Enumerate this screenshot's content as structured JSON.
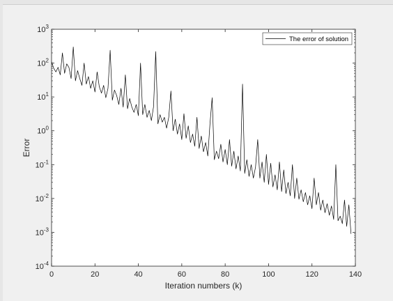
{
  "chart_data": {
    "type": "line",
    "title": "",
    "xlabel": "Iteration numbers (k)",
    "ylabel": "Error",
    "xlim": [
      0,
      140
    ],
    "ylim": [
      0.0001,
      1000
    ],
    "yscale": "log",
    "grid": false,
    "legend_position": "top-right",
    "x_ticks": [
      0,
      20,
      40,
      60,
      80,
      100,
      120,
      140
    ],
    "x_tick_labels": [
      "0",
      "20",
      "40",
      "60",
      "80",
      "100",
      "120",
      "140"
    ],
    "y_ticks": [
      0.0001,
      0.001,
      0.01,
      0.1,
      1,
      10,
      100,
      1000
    ],
    "y_tick_labels": [
      {
        "base": "10",
        "exp": "-4"
      },
      {
        "base": "10",
        "exp": "-3"
      },
      {
        "base": "10",
        "exp": "-2"
      },
      {
        "base": "10",
        "exp": "-1"
      },
      {
        "base": "10",
        "exp": "0"
      },
      {
        "base": "10",
        "exp": "1"
      },
      {
        "base": "10",
        "exp": "2"
      },
      {
        "base": "10",
        "exp": "3"
      }
    ],
    "series": [
      {
        "name": "The error of solution",
        "color": "#000000",
        "x": [
          0,
          1,
          2,
          3,
          4,
          5,
          6,
          7,
          8,
          9,
          10,
          11,
          12,
          13,
          14,
          15,
          16,
          17,
          18,
          19,
          20,
          21,
          22,
          23,
          24,
          25,
          26,
          27,
          28,
          29,
          30,
          31,
          32,
          33,
          34,
          35,
          36,
          37,
          38,
          39,
          40,
          41,
          42,
          43,
          44,
          45,
          46,
          47,
          48,
          49,
          50,
          51,
          52,
          53,
          54,
          55,
          56,
          57,
          58,
          59,
          60,
          61,
          62,
          63,
          64,
          65,
          66,
          67,
          68,
          69,
          70,
          71,
          72,
          73,
          74,
          75,
          76,
          77,
          78,
          79,
          80,
          81,
          82,
          83,
          84,
          85,
          86,
          87,
          88,
          89,
          90,
          91,
          92,
          93,
          94,
          95,
          96,
          97,
          98,
          99,
          100,
          101,
          102,
          103,
          104,
          105,
          106,
          107,
          108,
          109,
          110,
          111,
          112,
          113,
          114,
          115,
          116,
          117,
          118,
          119,
          120,
          121,
          122,
          123,
          124,
          125,
          126,
          127,
          128,
          129,
          130,
          131,
          132,
          133,
          134,
          135,
          136,
          137,
          138
        ],
        "y": [
          110,
          70,
          55,
          75,
          45,
          200,
          50,
          95,
          75,
          35,
          300,
          30,
          60,
          35,
          22,
          100,
          24,
          40,
          18,
          30,
          14,
          55,
          20,
          13,
          22,
          9.5,
          18,
          240,
          8,
          16,
          11,
          6,
          18,
          5,
          45,
          4.5,
          9,
          5,
          3.5,
          6,
          2.8,
          100,
          3,
          6,
          2.5,
          4,
          2,
          5.2,
          220,
          1.6,
          3,
          1.8,
          2.5,
          1.2,
          2.5,
          15,
          1.0,
          2.2,
          0.8,
          1.6,
          0.55,
          3.2,
          0.6,
          1.4,
          0.45,
          0.8,
          0.35,
          2.5,
          0.3,
          0.7,
          0.24,
          0.45,
          0.18,
          1.6,
          9.5,
          0.14,
          0.25,
          0.15,
          0.4,
          0.12,
          0.28,
          0.1,
          0.55,
          0.09,
          0.25,
          0.075,
          0.18,
          0.065,
          24,
          0.055,
          0.14,
          0.045,
          0.1,
          0.04,
          0.085,
          0.55,
          0.04,
          0.12,
          0.03,
          0.2,
          0.026,
          0.11,
          0.022,
          0.05,
          0.018,
          0.12,
          0.016,
          0.07,
          0.014,
          0.03,
          0.012,
          0.1,
          0.01,
          0.04,
          0.0095,
          0.018,
          0.008,
          0.015,
          0.0065,
          0.012,
          0.005,
          0.04,
          0.0065,
          0.015,
          0.0045,
          0.009,
          0.0038,
          0.007,
          0.0032,
          0.006,
          0.0024,
          0.1,
          0.0022,
          0.003,
          0.0018,
          0.009,
          0.0015,
          0.0065,
          0.0009
        ]
      }
    ]
  }
}
